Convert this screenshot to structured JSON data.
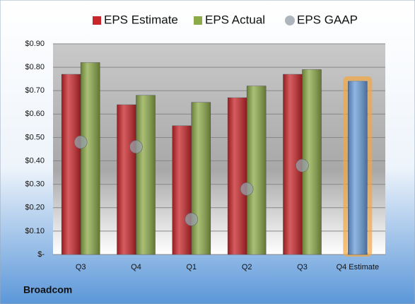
{
  "chart_data": {
    "type": "bar",
    "title": "Broadcom",
    "categories": [
      "Q3",
      "Q4",
      "Q1",
      "Q2",
      "Q3",
      "Q4 Estimate"
    ],
    "series": [
      {
        "name": "EPS Estimate",
        "color": "#c8262a",
        "values": [
          0.77,
          0.64,
          0.55,
          0.67,
          0.77,
          0.74
        ],
        "point_colors": [
          null,
          null,
          null,
          null,
          null,
          "#6a9edb"
        ]
      },
      {
        "name": "EPS Actual",
        "color": "#8caa48",
        "values": [
          0.82,
          0.68,
          0.65,
          0.72,
          0.79,
          null
        ]
      },
      {
        "name": "EPS GAAP",
        "color": "#9aa3ab",
        "marker": "circle",
        "values": [
          0.48,
          0.46,
          0.15,
          0.28,
          0.38,
          null
        ]
      }
    ],
    "ylim": [
      0,
      0.9
    ],
    "yticks": [
      {
        "value": 0,
        "label": "$-"
      },
      {
        "value": 0.1,
        "label": "$0.10"
      },
      {
        "value": 0.2,
        "label": "$0.20"
      },
      {
        "value": 0.3,
        "label": "$0.30"
      },
      {
        "value": 0.4,
        "label": "$0.40"
      },
      {
        "value": 0.5,
        "label": "$0.50"
      },
      {
        "value": 0.6,
        "label": "$0.60"
      },
      {
        "value": 0.7,
        "label": "$0.70"
      },
      {
        "value": 0.8,
        "label": "$0.80"
      },
      {
        "value": 0.9,
        "label": "$0.90"
      }
    ],
    "grid": true,
    "legend": "top"
  }
}
